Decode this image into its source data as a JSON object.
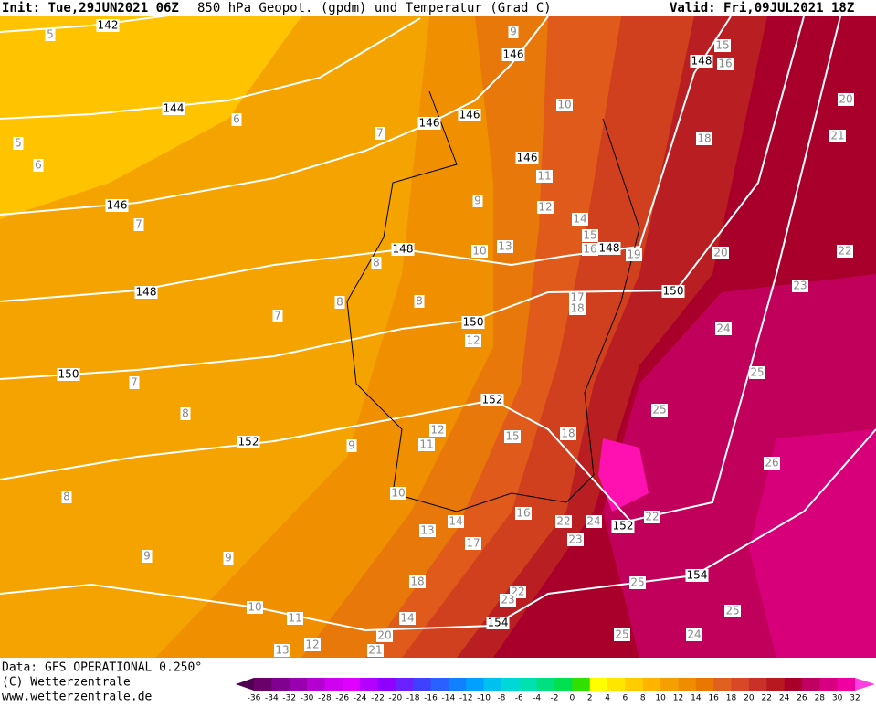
{
  "header": {
    "init": "Init: Tue,29JUN2021 06Z",
    "title": "850 hPa Geopot. (gpdm) und Temperatur (Grad C)",
    "valid": "Valid: Fri,09JUL2021 18Z"
  },
  "map": {
    "geopotential_labels": [
      142,
      144,
      146,
      146,
      146,
      146,
      146,
      148,
      148,
      148,
      148,
      150,
      150,
      150,
      152,
      152,
      152,
      154,
      154
    ],
    "temperature_labels": [
      5,
      5,
      6,
      6,
      7,
      7,
      7,
      7,
      8,
      8,
      8,
      8,
      8,
      9,
      9,
      9,
      9,
      9,
      10,
      10,
      10,
      10,
      11,
      11,
      11,
      12,
      12,
      12,
      12,
      13,
      13,
      13,
      14,
      14,
      14,
      15,
      15,
      15,
      16,
      16,
      16,
      17,
      17,
      18,
      18,
      18,
      18,
      19,
      20,
      20,
      20,
      21,
      21,
      22,
      22,
      22,
      22,
      23,
      23,
      23,
      24,
      24,
      24,
      25,
      25,
      25,
      25,
      25,
      26
    ]
  },
  "footer": {
    "data": "Data: GFS OPERATIONAL 0.250°",
    "copyright": "(C) Wetterzentrale",
    "url": "www.wetterzentrale.de"
  },
  "colorbar": {
    "levels": [
      -36,
      -34,
      -32,
      -30,
      -28,
      -26,
      -24,
      -22,
      -20,
      -18,
      -16,
      -14,
      -12,
      -10,
      -8,
      -6,
      -4,
      -2,
      0,
      2,
      4,
      6,
      8,
      10,
      12,
      14,
      16,
      18,
      20,
      22,
      24,
      26,
      28,
      30,
      32
    ],
    "colors": [
      "#500050",
      "#6a006a",
      "#800090",
      "#9a00b0",
      "#b400d0",
      "#d000f0",
      "#e000ff",
      "#b400ff",
      "#9000ff",
      "#6a20ff",
      "#4040ff",
      "#2a60ff",
      "#1080ff",
      "#00a0ff",
      "#00c0f0",
      "#00d8d8",
      "#00e0b0",
      "#00e080",
      "#00e050",
      "#30e000",
      "#ffff00",
      "#ffe600",
      "#ffcc00",
      "#ffb400",
      "#f5a000",
      "#f08c00",
      "#e87800",
      "#e06020",
      "#d84828",
      "#c83028",
      "#b81820",
      "#a8002a",
      "#c00060",
      "#d80080",
      "#f000a0",
      "#ff40e0"
    ]
  }
}
